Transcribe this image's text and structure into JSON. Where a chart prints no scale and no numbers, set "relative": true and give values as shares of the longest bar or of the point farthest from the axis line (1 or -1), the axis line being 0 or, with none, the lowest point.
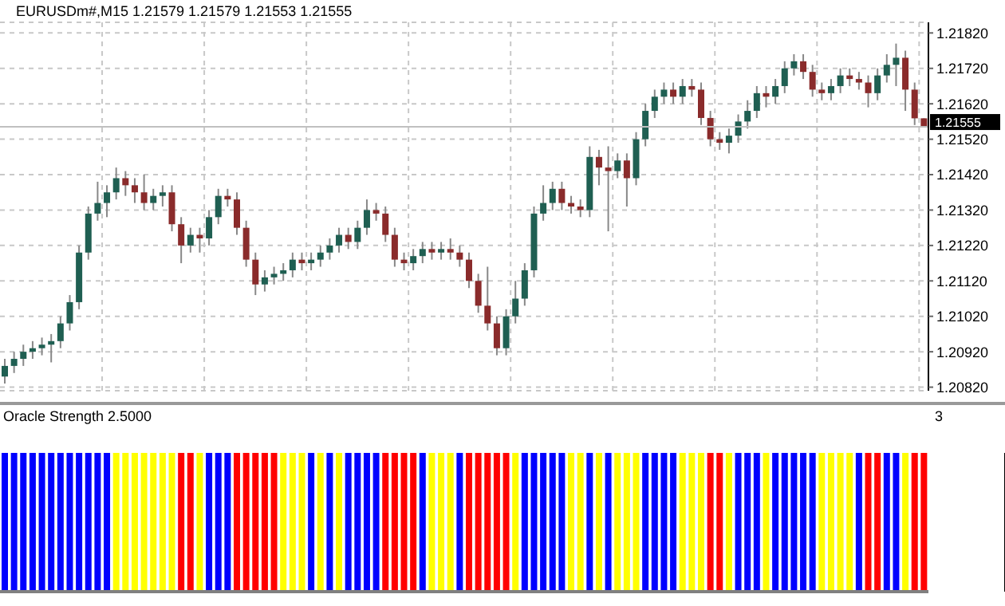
{
  "chart_data": [
    {
      "type": "candlestick",
      "title": "EURUSDm#,M15  1.21579 1.21579 1.21553 1.21555",
      "categories": [
        null,
        null,
        null,
        null,
        null,
        null,
        null,
        null,
        null,
        null,
        null,
        null,
        null,
        null,
        null,
        null,
        null,
        null,
        null,
        null,
        null,
        null,
        null,
        null,
        null,
        null,
        null,
        null,
        null,
        null,
        null,
        null,
        null,
        null,
        null,
        null,
        null,
        null,
        null,
        null,
        null,
        null,
        null,
        null,
        null,
        null,
        null,
        null,
        null,
        null,
        null,
        null,
        null,
        null,
        null,
        null,
        null,
        null,
        null,
        null,
        null,
        null,
        null,
        null,
        null,
        null,
        null,
        null,
        null,
        null,
        null,
        null,
        null,
        null,
        null,
        null,
        null,
        null,
        null,
        null,
        null,
        null,
        null,
        null,
        null,
        null,
        null,
        null,
        null,
        null,
        null,
        null,
        null,
        null,
        null,
        null,
        null,
        null,
        null,
        null
      ],
      "ohlc": [
        [
          1.2085,
          1.209,
          1.2083,
          1.2088
        ],
        [
          1.2088,
          1.2092,
          1.2086,
          1.209
        ],
        [
          1.209,
          1.2094,
          1.2088,
          1.2092
        ],
        [
          1.2092,
          1.2095,
          1.209,
          1.2093
        ],
        [
          1.2093,
          1.2096,
          1.2091,
          1.2094
        ],
        [
          1.2094,
          1.2097,
          1.2089,
          1.2095
        ],
        [
          1.2095,
          1.2102,
          1.2093,
          1.21
        ],
        [
          1.21,
          1.2108,
          1.2098,
          1.2106
        ],
        [
          1.2106,
          1.2122,
          1.2104,
          1.212
        ],
        [
          1.212,
          1.2133,
          1.2118,
          1.2131
        ],
        [
          1.2131,
          1.214,
          1.2129,
          1.2134
        ],
        [
          1.2134,
          1.2139,
          1.213,
          1.2137
        ],
        [
          1.2137,
          1.2144,
          1.2135,
          1.2141
        ],
        [
          1.2141,
          1.2143,
          1.2136,
          1.2139
        ],
        [
          1.2139,
          1.2141,
          1.2134,
          1.2137
        ],
        [
          1.2137,
          1.2142,
          1.2132,
          1.2134
        ],
        [
          1.2134,
          1.2138,
          1.2132,
          1.2136
        ],
        [
          1.2136,
          1.2139,
          1.2133,
          1.2137
        ],
        [
          1.2137,
          1.2139,
          1.2126,
          1.2128
        ],
        [
          1.2128,
          1.213,
          1.2117,
          1.2122
        ],
        [
          1.2122,
          1.2127,
          1.212,
          1.2125
        ],
        [
          1.2125,
          1.2127,
          1.212,
          1.2124
        ],
        [
          1.2124,
          1.2132,
          1.2122,
          1.213
        ],
        [
          1.213,
          1.2138,
          1.2128,
          1.2136
        ],
        [
          1.2136,
          1.2138,
          1.2133,
          1.2135
        ],
        [
          1.2135,
          1.2137,
          1.2125,
          1.2127
        ],
        [
          1.2127,
          1.2129,
          1.2116,
          1.2118
        ],
        [
          1.2118,
          1.212,
          1.2108,
          1.2111
        ],
        [
          1.2111,
          1.2115,
          1.2109,
          1.2113
        ],
        [
          1.2113,
          1.2116,
          1.2111,
          1.2114
        ],
        [
          1.2114,
          1.2117,
          1.2112,
          1.2115
        ],
        [
          1.2115,
          1.212,
          1.2113,
          1.2118
        ],
        [
          1.2118,
          1.212,
          1.2115,
          1.2117
        ],
        [
          1.2117,
          1.212,
          1.2115,
          1.2118
        ],
        [
          1.2118,
          1.2122,
          1.2116,
          1.212
        ],
        [
          1.212,
          1.2124,
          1.2118,
          1.2122
        ],
        [
          1.2122,
          1.2127,
          1.212,
          1.2125
        ],
        [
          1.2125,
          1.2127,
          1.2121,
          1.2123
        ],
        [
          1.2123,
          1.2129,
          1.2121,
          1.2127
        ],
        [
          1.2127,
          1.2135,
          1.2125,
          1.2132
        ],
        [
          1.2132,
          1.2134,
          1.2129,
          1.2131
        ],
        [
          1.2131,
          1.2133,
          1.2123,
          1.2125
        ],
        [
          1.2125,
          1.2127,
          1.2116,
          1.2118
        ],
        [
          1.2118,
          1.212,
          1.2115,
          1.2117
        ],
        [
          1.2117,
          1.2121,
          1.2115,
          1.2119
        ],
        [
          1.2119,
          1.2123,
          1.2117,
          1.2121
        ],
        [
          1.2121,
          1.2123,
          1.2118,
          1.212
        ],
        [
          1.212,
          1.2123,
          1.2118,
          1.2121
        ],
        [
          1.2121,
          1.2124,
          1.2118,
          1.212
        ],
        [
          1.212,
          1.2122,
          1.2116,
          1.2118
        ],
        [
          1.2118,
          1.212,
          1.211,
          1.2112
        ],
        [
          1.2112,
          1.2114,
          1.2103,
          1.2105
        ],
        [
          1.2105,
          1.2116,
          1.2098,
          1.21
        ],
        [
          1.21,
          1.2102,
          1.2091,
          1.2093
        ],
        [
          1.2093,
          1.2104,
          1.2091,
          1.2102
        ],
        [
          1.2102,
          1.2112,
          1.21,
          1.2107
        ],
        [
          1.2107,
          1.2117,
          1.2105,
          1.2115
        ],
        [
          1.2115,
          1.2133,
          1.2113,
          1.2131
        ],
        [
          1.2131,
          1.2139,
          1.2129,
          1.2134
        ],
        [
          1.2134,
          1.214,
          1.2132,
          1.2138
        ],
        [
          1.2138,
          1.214,
          1.2132,
          1.2134
        ],
        [
          1.2134,
          1.2136,
          1.2131,
          1.2133
        ],
        [
          1.2133,
          1.2135,
          1.213,
          1.2132
        ],
        [
          1.2132,
          1.215,
          1.213,
          1.2147
        ],
        [
          1.2147,
          1.2149,
          1.2139,
          1.2144
        ],
        [
          1.2144,
          1.215,
          1.2126,
          1.2143
        ],
        [
          1.2143,
          1.2148,
          1.2141,
          1.2146
        ],
        [
          1.2146,
          1.2148,
          1.2133,
          1.2141
        ],
        [
          1.2141,
          1.2154,
          1.2139,
          1.2152
        ],
        [
          1.2152,
          1.2162,
          1.215,
          1.216
        ],
        [
          1.216,
          1.2166,
          1.2158,
          1.2164
        ],
        [
          1.2164,
          1.2168,
          1.2162,
          1.2166
        ],
        [
          1.2166,
          1.2168,
          1.2162,
          1.2164
        ],
        [
          1.2164,
          1.2169,
          1.2162,
          1.2167
        ],
        [
          1.2167,
          1.2169,
          1.2164,
          1.2166
        ],
        [
          1.2166,
          1.2168,
          1.2156,
          1.2158
        ],
        [
          1.2158,
          1.216,
          1.215,
          1.2152
        ],
        [
          1.2152,
          1.2154,
          1.2149,
          1.2151
        ],
        [
          1.2151,
          1.2155,
          1.2148,
          1.2153
        ],
        [
          1.2153,
          1.2159,
          1.2151,
          1.2157
        ],
        [
          1.2157,
          1.2163,
          1.2155,
          1.216
        ],
        [
          1.216,
          1.2167,
          1.2158,
          1.2165
        ],
        [
          1.2165,
          1.2167,
          1.2161,
          1.2164
        ],
        [
          1.2164,
          1.2169,
          1.2162,
          1.2167
        ],
        [
          1.2167,
          1.2174,
          1.2165,
          1.2172
        ],
        [
          1.2172,
          1.2176,
          1.217,
          1.2174
        ],
        [
          1.2174,
          1.2176,
          1.2169,
          1.2171
        ],
        [
          1.2171,
          1.2173,
          1.2164,
          1.2166
        ],
        [
          1.2166,
          1.2168,
          1.2163,
          1.2165
        ],
        [
          1.2165,
          1.2169,
          1.2163,
          1.2167
        ],
        [
          1.2167,
          1.2172,
          1.2165,
          1.217
        ],
        [
          1.217,
          1.2172,
          1.2167,
          1.2169
        ],
        [
          1.2169,
          1.2171,
          1.2166,
          1.2168
        ],
        [
          1.2168,
          1.217,
          1.2161,
          1.2165
        ],
        [
          1.2165,
          1.2172,
          1.2163,
          1.217
        ],
        [
          1.217,
          1.2176,
          1.2168,
          1.2173
        ],
        [
          1.2173,
          1.2179,
          1.2167,
          1.2175
        ],
        [
          1.2175,
          1.2177,
          1.216,
          1.2166
        ],
        [
          1.2166,
          1.2168,
          1.2156,
          1.21579
        ],
        [
          1.21579,
          1.21579,
          1.21553,
          1.21555
        ]
      ],
      "ylim": [
        1.2081,
        1.2185
      ],
      "yticks": [
        {
          "value": 1.2082,
          "label": "1.20820"
        },
        {
          "value": 1.2092,
          "label": "1.20920"
        },
        {
          "value": 1.2102,
          "label": "1.21020"
        },
        {
          "value": 1.2112,
          "label": "1.21120"
        },
        {
          "value": 1.2122,
          "label": "1.21220"
        },
        {
          "value": 1.2132,
          "label": "1.21320"
        },
        {
          "value": 1.2142,
          "label": "1.21420"
        },
        {
          "value": 1.2152,
          "label": "1.21520"
        },
        {
          "value": 1.2162,
          "label": "1.21620"
        },
        {
          "value": 1.2172,
          "label": "1.21720"
        },
        {
          "value": 1.2182,
          "label": "1.21820"
        }
      ],
      "ref_lines": [
        {
          "axis": "y",
          "value": 1.21555,
          "label": "1.21555",
          "color": "#c0c0c0"
        }
      ],
      "grid": true
    },
    {
      "type": "bar",
      "title": "Oracle Strength 2.5000",
      "relative": true,
      "annotations": [
        "3"
      ],
      "categories": [
        null,
        null,
        null,
        null,
        null,
        null,
        null,
        null,
        null,
        null,
        null,
        null,
        null,
        null,
        null,
        null,
        null,
        null,
        null,
        null,
        null,
        null,
        null,
        null,
        null,
        null,
        null,
        null,
        null,
        null,
        null,
        null,
        null,
        null,
        null,
        null,
        null,
        null,
        null,
        null,
        null,
        null,
        null,
        null,
        null,
        null,
        null,
        null,
        null,
        null,
        null,
        null,
        null,
        null,
        null,
        null,
        null,
        null,
        null,
        null,
        null,
        null,
        null,
        null,
        null,
        null,
        null,
        null,
        null,
        null,
        null,
        null,
        null,
        null,
        null,
        null,
        null,
        null,
        null,
        null,
        null,
        null,
        null,
        null,
        null,
        null,
        null,
        null,
        null,
        null,
        null,
        null,
        null,
        null,
        null,
        null,
        null,
        null,
        null,
        null
      ],
      "values": [
        1,
        1,
        1,
        1,
        1,
        1,
        1,
        1,
        1,
        1,
        1,
        1,
        1,
        1,
        1,
        1,
        1,
        1,
        1,
        1,
        1,
        1,
        1,
        1,
        1,
        1,
        1,
        1,
        1,
        1,
        1,
        1,
        1,
        1,
        1,
        1,
        1,
        1,
        1,
        1,
        1,
        1,
        1,
        1,
        1,
        1,
        1,
        1,
        1,
        1,
        1,
        1,
        1,
        1,
        1,
        1,
        1,
        1,
        1,
        1,
        1,
        1,
        1,
        1,
        1,
        1,
        1,
        1,
        1,
        1,
        1,
        1,
        1,
        1,
        1,
        1,
        1,
        1,
        1,
        1,
        1,
        1,
        1,
        1,
        1,
        1,
        1,
        1,
        1,
        1,
        1,
        1,
        1,
        1,
        1,
        1,
        1,
        1,
        1,
        1
      ],
      "colors": [
        "#0000ff",
        "#0000ff",
        "#0000ff",
        "#0000ff",
        "#0000ff",
        "#0000ff",
        "#0000ff",
        "#0000ff",
        "#0000ff",
        "#0000ff",
        "#0000ff",
        "#0000ff",
        "#ffff00",
        "#ffff00",
        "#ffff00",
        "#ffff00",
        "#ffff00",
        "#ffff00",
        "#ffff00",
        "#ff0000",
        "#ff0000",
        "#ffff00",
        "#0000ff",
        "#0000ff",
        "#0000ff",
        "#ff0000",
        "#ff0000",
        "#ff0000",
        "#ff0000",
        "#ff0000",
        "#ffff00",
        "#ffff00",
        "#ffff00",
        "#0000ff",
        "#ffff00",
        "#0000ff",
        "#ffff00",
        "#0000ff",
        "#0000ff",
        "#0000ff",
        "#0000ff",
        "#ff0000",
        "#ff0000",
        "#ff0000",
        "#ff0000",
        "#0000ff",
        "#ffff00",
        "#ffff00",
        "#ffff00",
        "#0000ff",
        "#ff0000",
        "#ff0000",
        "#ff0000",
        "#ff0000",
        "#ff0000",
        "#ffff00",
        "#0000ff",
        "#0000ff",
        "#0000ff",
        "#0000ff",
        "#0000ff",
        "#ffff00",
        "#ffff00",
        "#0000ff",
        "#ffff00",
        "#0000ff",
        "#ffff00",
        "#ffff00",
        "#ffff00",
        "#0000ff",
        "#0000ff",
        "#0000ff",
        "#0000ff",
        "#ffff00",
        "#ffff00",
        "#ffff00",
        "#ff0000",
        "#ff0000",
        "#ffff00",
        "#0000ff",
        "#0000ff",
        "#0000ff",
        "#ffff00",
        "#0000ff",
        "#0000ff",
        "#0000ff",
        "#0000ff",
        "#0000ff",
        "#ffff00",
        "#ffff00",
        "#ffff00",
        "#ffff00",
        "#0000ff",
        "#ff0000",
        "#ff0000",
        "#0000ff",
        "#0000ff",
        "#ffff00",
        "#ff0000",
        "#ff0000"
      ]
    }
  ]
}
